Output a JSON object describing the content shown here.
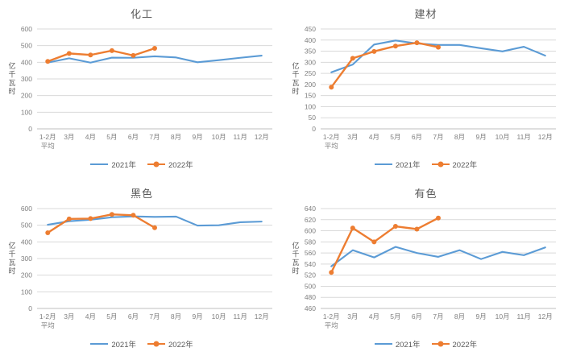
{
  "colors": {
    "series_2021": "#5B9BD5",
    "series_2022": "#ED7D31",
    "gridline": "#D9D9D9",
    "axis_line": "#BFBFBF",
    "tick_text": "#7F7F7F",
    "title_text": "#595959"
  },
  "chart_data": [
    {
      "type": "line",
      "title": "化工",
      "xlabel": "",
      "ylabel": "亿千瓦时",
      "ylim": [
        0,
        600
      ],
      "ytick_step": 100,
      "grid": true,
      "legend_position": "bottom",
      "categories": [
        "1-2月\n平均",
        "3月",
        "4月",
        "5月",
        "6月",
        "7月",
        "8月",
        "9月",
        "10月",
        "11月",
        "12月"
      ],
      "series": [
        {
          "name": "2021年",
          "color": "#5B9BD5",
          "marker": false,
          "values": [
            398,
            424,
            398,
            428,
            427,
            436,
            429,
            400,
            413,
            427,
            440
          ]
        },
        {
          "name": "2022年",
          "color": "#ED7D31",
          "marker": true,
          "values": [
            405,
            453,
            444,
            470,
            441,
            484
          ]
        }
      ]
    },
    {
      "type": "line",
      "title": "建材",
      "xlabel": "",
      "ylabel": "亿千瓦时",
      "ylim": [
        0,
        450
      ],
      "ytick_step": 50,
      "grid": true,
      "legend_position": "bottom",
      "categories": [
        "1-2月\n平均",
        "3月",
        "4月",
        "5月",
        "6月",
        "7月",
        "8月",
        "9月",
        "10月",
        "11月",
        "12月"
      ],
      "series": [
        {
          "name": "2021年",
          "color": "#5B9BD5",
          "marker": false,
          "values": [
            255,
            290,
            380,
            398,
            385,
            378,
            378,
            363,
            349,
            370,
            330
          ]
        },
        {
          "name": "2022年",
          "color": "#ED7D31",
          "marker": true,
          "values": [
            188,
            318,
            349,
            373,
            388,
            368
          ]
        }
      ]
    },
    {
      "type": "line",
      "title": "黑色",
      "xlabel": "",
      "ylabel": "亿千瓦时",
      "ylim": [
        0,
        600
      ],
      "ytick_step": 100,
      "grid": true,
      "legend_position": "bottom",
      "categories": [
        "1-2月\n平均",
        "3月",
        "4月",
        "5月",
        "6月",
        "7月",
        "8月",
        "9月",
        "10月",
        "11月",
        "12月"
      ],
      "series": [
        {
          "name": "2021年",
          "color": "#5B9BD5",
          "marker": false,
          "values": [
            503,
            524,
            533,
            548,
            553,
            550,
            552,
            498,
            500,
            518,
            522
          ]
        },
        {
          "name": "2022年",
          "color": "#ED7D31",
          "marker": true,
          "values": [
            455,
            538,
            540,
            565,
            560,
            485
          ]
        }
      ]
    },
    {
      "type": "line",
      "title": "有色",
      "xlabel": "",
      "ylabel": "亿千瓦时",
      "ylim": [
        460,
        640
      ],
      "ytick_step": 20,
      "grid": true,
      "legend_position": "bottom",
      "categories": [
        "1-2月\n平均",
        "3月",
        "4月",
        "5月",
        "6月",
        "7月",
        "8月",
        "9月",
        "10月",
        "11月",
        "12月"
      ],
      "series": [
        {
          "name": "2021年",
          "color": "#5B9BD5",
          "marker": false,
          "values": [
            536,
            565,
            552,
            571,
            560,
            553,
            565,
            549,
            562,
            556,
            570
          ]
        },
        {
          "name": "2022年",
          "color": "#ED7D31",
          "marker": true,
          "values": [
            525,
            605,
            580,
            608,
            603,
            623
          ]
        }
      ]
    }
  ]
}
